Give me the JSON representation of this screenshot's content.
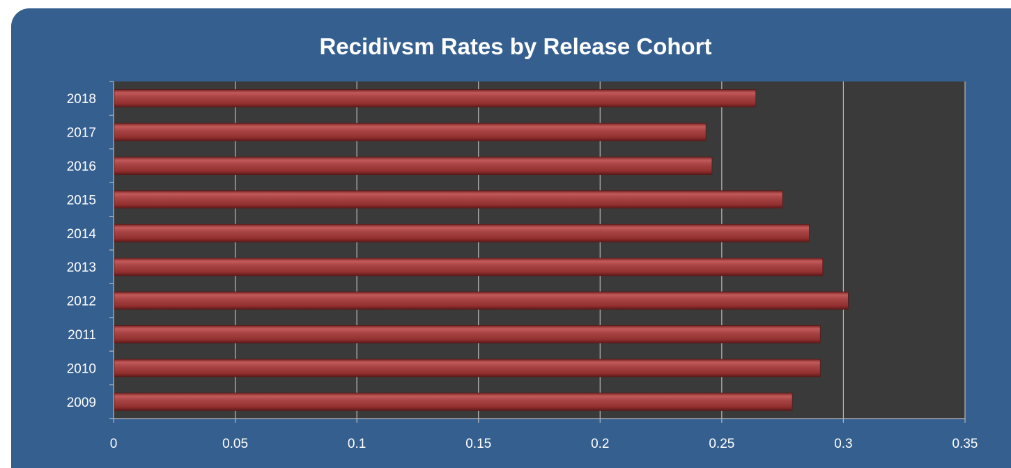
{
  "chart_data": {
    "type": "bar",
    "orientation": "horizontal",
    "title": "Recidivsm Rates by Release Cohort",
    "xlabel": "",
    "ylabel": "",
    "categories": [
      "2009",
      "2010",
      "2011",
      "2012",
      "2013",
      "2014",
      "2015",
      "2016",
      "2017",
      "2018"
    ],
    "values": [
      0.279,
      0.2905,
      0.2905,
      0.302,
      0.2915,
      0.286,
      0.275,
      0.246,
      0.2435,
      0.264
    ],
    "xlim": [
      0,
      0.35
    ],
    "xticks": [
      "0",
      "0.05",
      "0.1",
      "0.15",
      "0.2",
      "0.25",
      "0.3",
      "0.35"
    ],
    "grid": true,
    "legend": "none",
    "colors": {
      "background": "#355f8f",
      "plot_area": "#3a3a3a",
      "bar": "#a63a3a",
      "gridline": "#b8b8b8",
      "text": "#ffffff"
    }
  }
}
